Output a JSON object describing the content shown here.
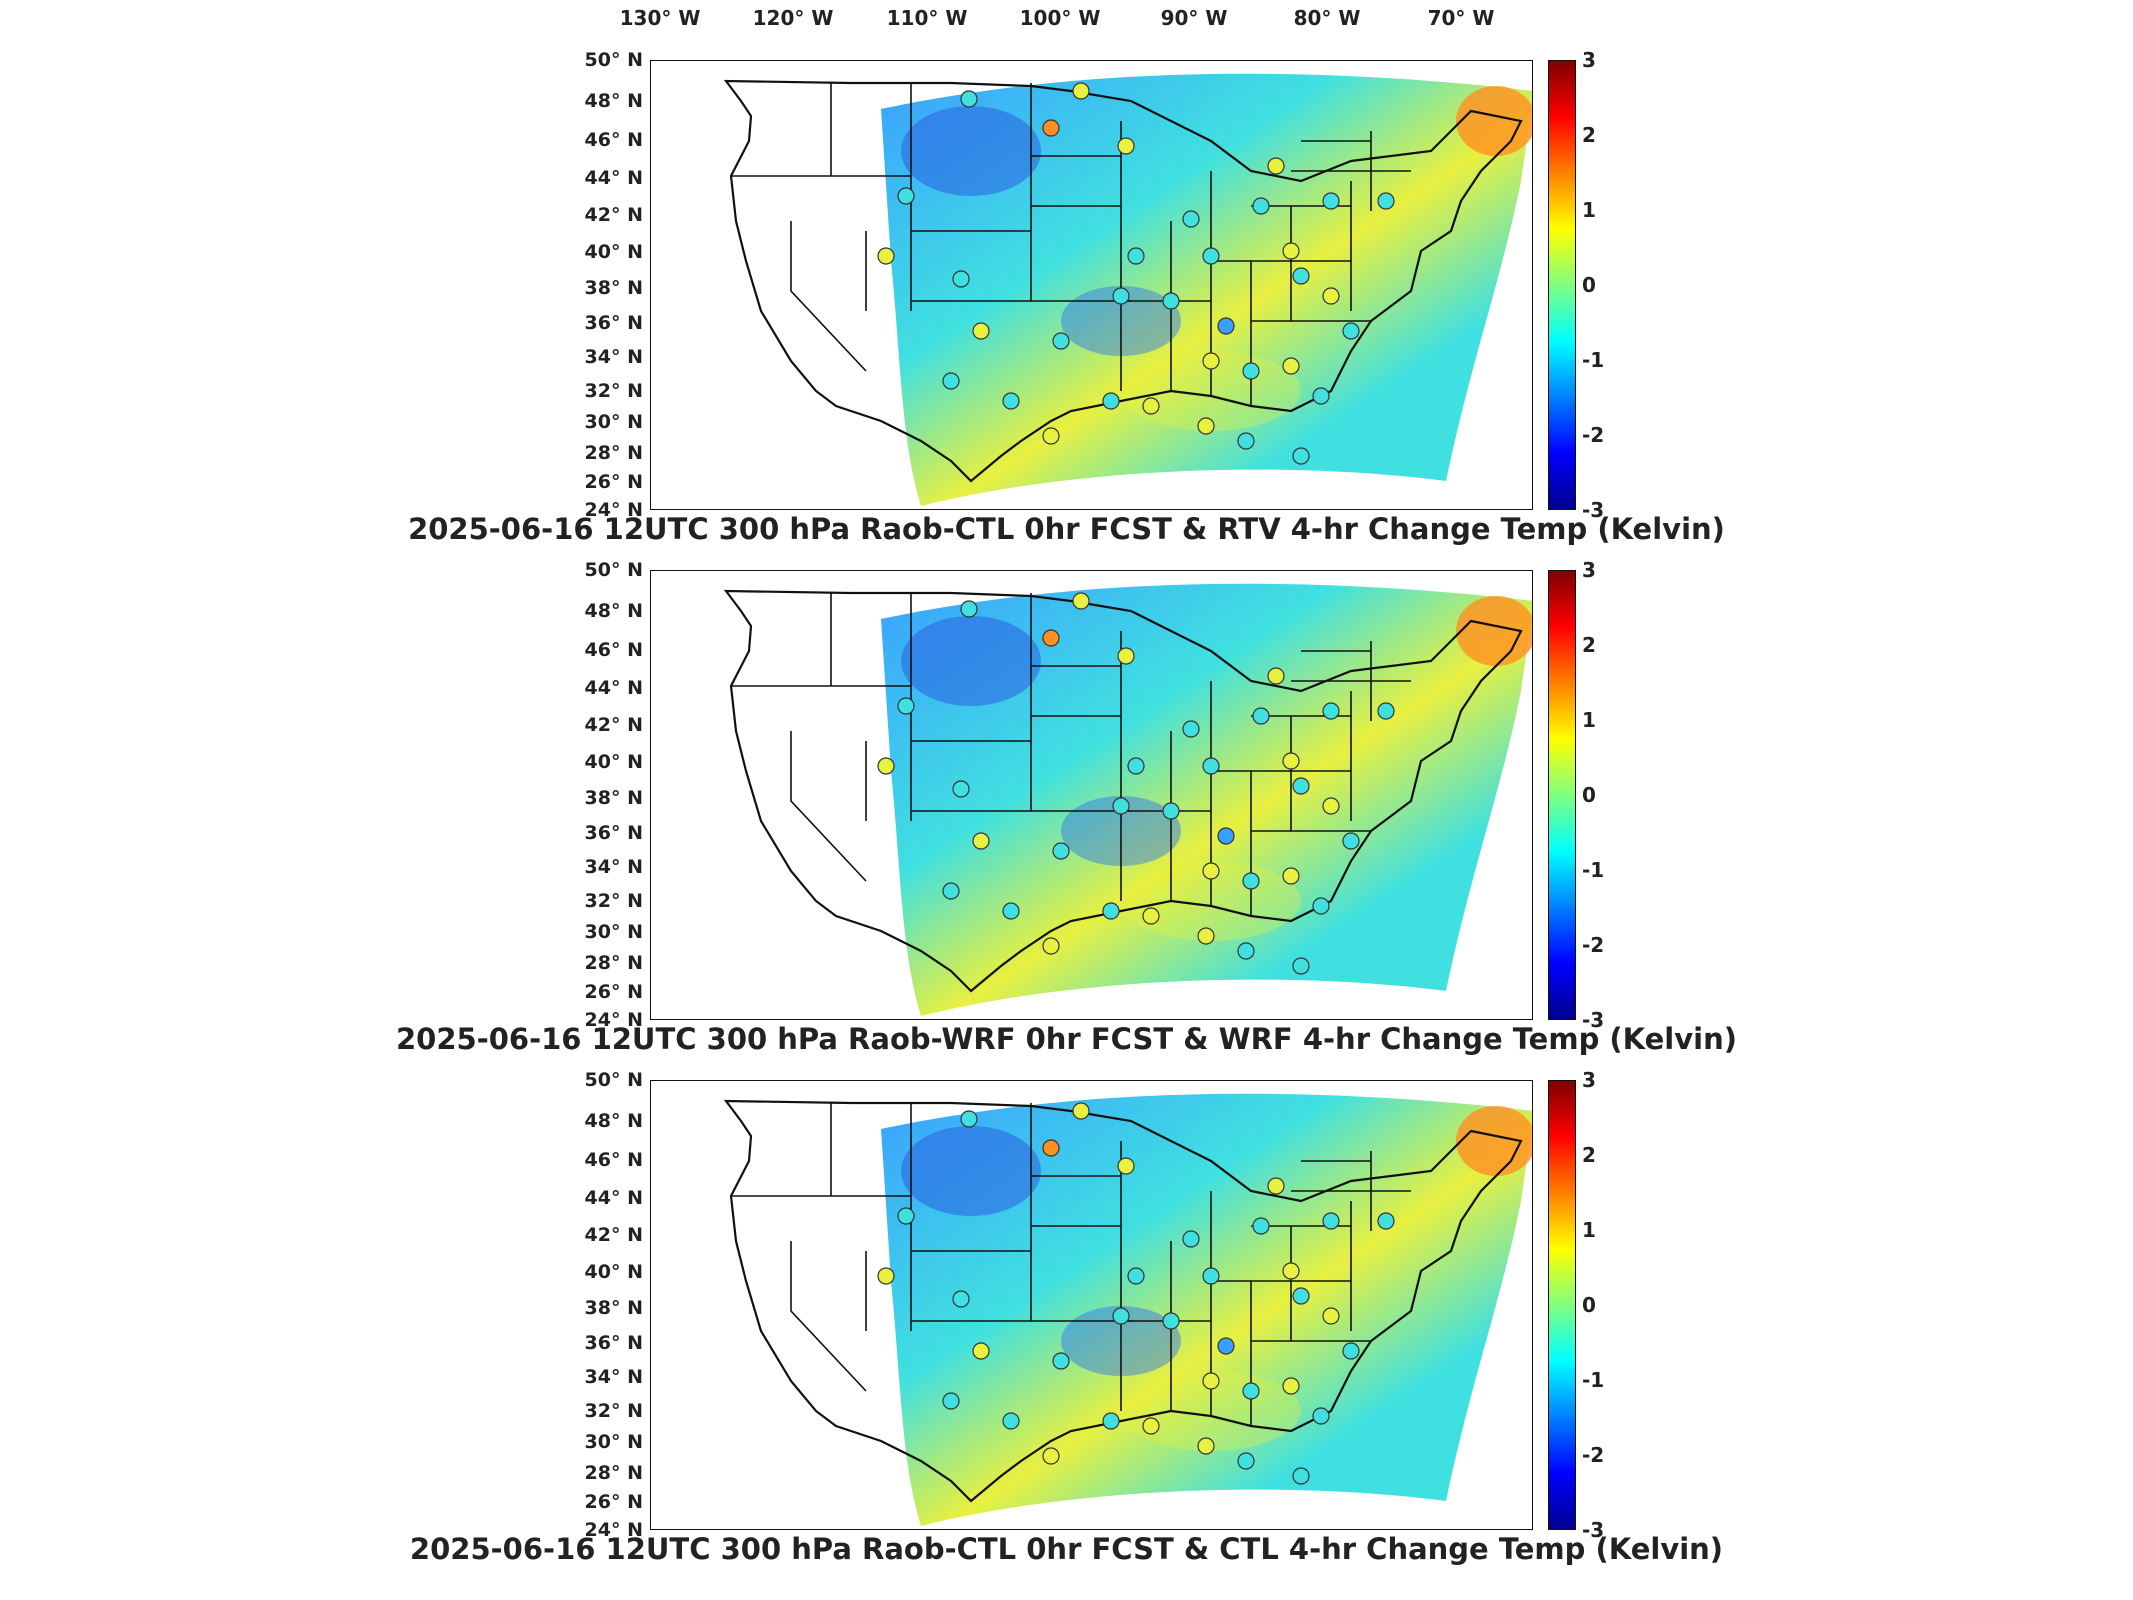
{
  "longitude_labels": [
    "130° W",
    "120° W",
    "110° W",
    "100° W",
    "90° W",
    "80° W",
    "70° W"
  ],
  "latitude_labels": [
    "50° N",
    "48° N",
    "46° N",
    "44° N",
    "42° N",
    "40° N",
    "38° N",
    "36° N",
    "34° N",
    "32° N",
    "30° N",
    "28° N",
    "26° N",
    "24° N"
  ],
  "colorbar": {
    "ticks": [
      "3",
      "2",
      "1",
      "0",
      "-1",
      "-2",
      "-3"
    ],
    "range": [
      -3,
      3
    ],
    "colormap": "jet",
    "units": "Kelvin"
  },
  "panels": [
    {
      "title": "2025-06-16 12UTC 300 hPa Raob-CTL 0hr FCST & RTV 4-hr Change Temp (Kelvin)"
    },
    {
      "title": "2025-06-16 12UTC 300 hPa Raob-WRF 0hr FCST & WRF 4-hr Change Temp (Kelvin)"
    },
    {
      "title": "2025-06-16 12UTC 300 hPa Raob-CTL 0hr FCST & CTL 4-hr Change Temp (Kelvin)"
    }
  ],
  "colors": {
    "field_blue": "#3aa0ff",
    "field_cyan": "#40e0e0",
    "field_yellow": "#e8f040",
    "field_orange": "#ff9020",
    "outline": "#111111"
  }
}
